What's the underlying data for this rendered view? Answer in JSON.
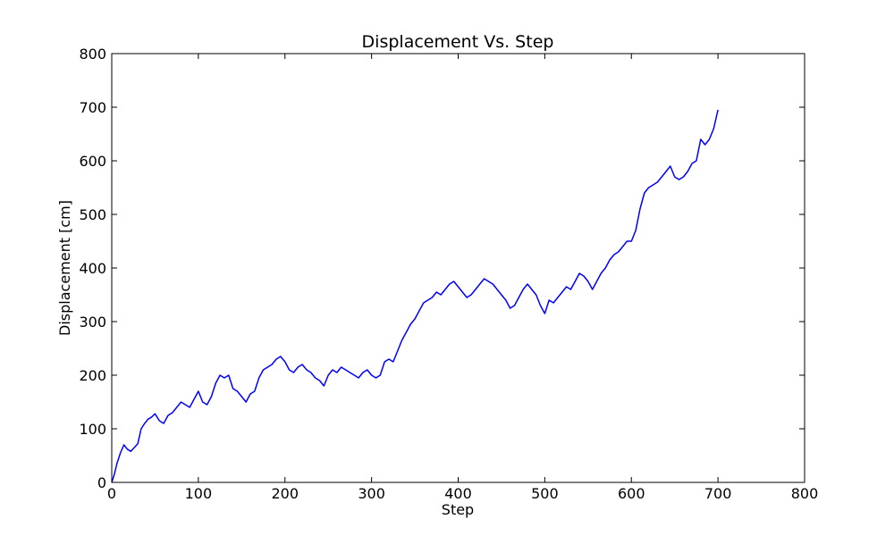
{
  "chart_data": {
    "type": "line",
    "title": "Displacement Vs. Step",
    "xlabel": "Step",
    "ylabel": "Displacement [cm]",
    "xlim": [
      0,
      800
    ],
    "ylim": [
      0,
      800
    ],
    "xticks": [
      0,
      100,
      200,
      300,
      400,
      500,
      600,
      700,
      800
    ],
    "yticks": [
      0,
      100,
      200,
      300,
      400,
      500,
      600,
      700,
      800
    ],
    "grid": false,
    "legend": "none",
    "series": [
      {
        "color": "#0000ff",
        "x": [
          0,
          3,
          6,
          10,
          14,
          18,
          22,
          26,
          30,
          34,
          38,
          42,
          46,
          50,
          55,
          60,
          65,
          70,
          75,
          80,
          85,
          90,
          95,
          100,
          105,
          110,
          115,
          120,
          125,
          130,
          135,
          140,
          145,
          150,
          155,
          160,
          165,
          170,
          175,
          180,
          185,
          190,
          195,
          200,
          205,
          210,
          215,
          220,
          225,
          230,
          235,
          240,
          245,
          250,
          255,
          260,
          265,
          270,
          275,
          280,
          285,
          290,
          295,
          300,
          305,
          310,
          315,
          320,
          325,
          330,
          335,
          340,
          345,
          350,
          355,
          360,
          365,
          370,
          375,
          380,
          385,
          390,
          395,
          400,
          405,
          410,
          415,
          420,
          425,
          430,
          435,
          440,
          445,
          450,
          455,
          460,
          465,
          470,
          475,
          480,
          485,
          490,
          495,
          500,
          505,
          510,
          515,
          520,
          525,
          530,
          535,
          540,
          545,
          550,
          555,
          560,
          565,
          570,
          575,
          580,
          585,
          590,
          595,
          600,
          605,
          610,
          615,
          620,
          625,
          630,
          635,
          640,
          645,
          650,
          655,
          660,
          665,
          670,
          675,
          680,
          685,
          690,
          695,
          700
        ],
        "y": [
          0,
          15,
          35,
          55,
          70,
          62,
          58,
          65,
          72,
          100,
          110,
          118,
          122,
          128,
          115,
          110,
          125,
          130,
          140,
          150,
          145,
          140,
          155,
          170,
          150,
          145,
          160,
          185,
          200,
          195,
          200,
          175,
          170,
          160,
          150,
          165,
          170,
          195,
          210,
          215,
          220,
          230,
          235,
          225,
          210,
          205,
          215,
          220,
          210,
          205,
          195,
          190,
          180,
          200,
          210,
          205,
          215,
          210,
          205,
          200,
          195,
          205,
          210,
          200,
          195,
          200,
          225,
          230,
          225,
          245,
          265,
          280,
          295,
          305,
          320,
          335,
          340,
          345,
          355,
          350,
          360,
          370,
          375,
          365,
          355,
          345,
          350,
          360,
          370,
          380,
          375,
          370,
          360,
          350,
          340,
          325,
          330,
          345,
          360,
          370,
          360,
          350,
          330,
          315,
          340,
          335,
          345,
          355,
          365,
          360,
          375,
          390,
          385,
          375,
          360,
          375,
          390,
          400,
          415,
          425,
          430,
          440,
          450,
          450,
          470,
          510,
          540,
          550,
          555,
          560,
          570,
          580,
          590,
          570,
          565,
          570,
          580,
          595,
          600,
          640,
          630,
          640,
          660,
          695
        ]
      }
    ]
  }
}
